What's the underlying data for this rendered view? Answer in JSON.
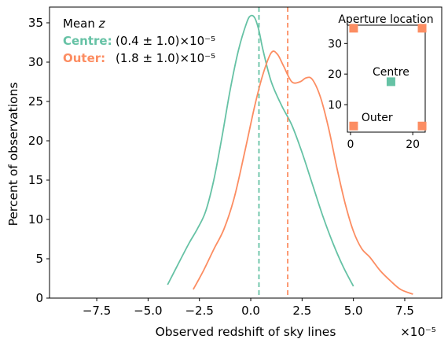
{
  "chart_data": {
    "type": "line",
    "xlabel": "Observed redshift of sky lines",
    "ylabel": "Percent of observations",
    "x_scale_label": "×10⁻⁵",
    "xlim": [
      -9.8,
      9.3
    ],
    "ylim": [
      0,
      37
    ],
    "xticks": [
      -7.5,
      -5.0,
      -2.5,
      0.0,
      2.5,
      5.0,
      7.5
    ],
    "xtick_labels": [
      "−7.5",
      "−5.0",
      "−2.5",
      "0.0",
      "2.5",
      "5.0",
      "7.5"
    ],
    "yticks": [
      0,
      5,
      10,
      15,
      20,
      25,
      30,
      35
    ],
    "ytick_labels": [
      "0",
      "5",
      "10",
      "15",
      "20",
      "25",
      "30",
      "35"
    ],
    "grid": false,
    "legend": {
      "placement": "top-left",
      "title_prefix": "Mean ",
      "title_var": "z",
      "entries": [
        {
          "label": "Centre:",
          "value": "(0.4 ± 1.0)×10⁻⁵"
        },
        {
          "label": "Outer:",
          "value": "(1.8 ± 1.0)×10⁻⁵"
        }
      ]
    },
    "series": [
      {
        "name": "Centre",
        "color": "#66c2a5",
        "mean": 0.4,
        "x": [
          -4.05,
          -3.5,
          -3.0,
          -2.6,
          -2.2,
          -1.8,
          -1.4,
          -1.0,
          -0.6,
          -0.2,
          0.0,
          0.2,
          0.4,
          0.6,
          1.0,
          1.5,
          2.0,
          2.5,
          3.0,
          3.5,
          4.0,
          4.5,
          5.0
        ],
        "y": [
          1.7,
          4.5,
          7.0,
          8.8,
          11.0,
          15.0,
          20.5,
          26.5,
          31.5,
          35.0,
          35.9,
          35.6,
          34.0,
          31.5,
          27.5,
          24.5,
          22.0,
          18.5,
          14.5,
          10.5,
          7.0,
          4.0,
          1.5
        ]
      },
      {
        "name": "Outer",
        "color": "#fc8d62",
        "mean": 1.8,
        "x": [
          -2.8,
          -2.3,
          -1.8,
          -1.3,
          -0.8,
          -0.3,
          0.2,
          0.6,
          1.0,
          1.3,
          1.6,
          2.0,
          2.4,
          2.7,
          3.0,
          3.4,
          3.8,
          4.2,
          4.6,
          5.0,
          5.4,
          5.8,
          6.3,
          6.8,
          7.3,
          7.9
        ],
        "y": [
          1.1,
          3.5,
          6.2,
          8.8,
          12.8,
          18.5,
          24.5,
          28.5,
          31.2,
          31.0,
          29.5,
          27.5,
          27.5,
          28.0,
          27.8,
          25.5,
          21.5,
          16.5,
          12.0,
          8.5,
          6.3,
          5.2,
          3.5,
          2.2,
          1.1,
          0.5
        ]
      }
    ],
    "inset": {
      "title": "Aperture location",
      "xlim": [
        -1,
        24
      ],
      "ylim": [
        1,
        36
      ],
      "xticks": [
        0,
        20
      ],
      "yticks": [
        10,
        20,
        30
      ],
      "points": [
        {
          "label": "Centre",
          "x": 13,
          "y": 17.5,
          "color": "#66c2a5"
        },
        {
          "label": "Outer",
          "x": 1,
          "y": 3,
          "color": "#fc8d62"
        },
        {
          "label": "",
          "x": 23,
          "y": 3,
          "color": "#fc8d62"
        },
        {
          "label": "",
          "x": 1,
          "y": 35,
          "color": "#fc8d62"
        },
        {
          "label": "",
          "x": 23,
          "y": 35,
          "color": "#fc8d62"
        }
      ],
      "labels": {
        "centre": "Centre",
        "outer": "Outer"
      }
    }
  }
}
